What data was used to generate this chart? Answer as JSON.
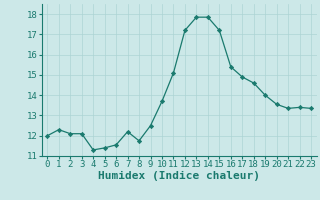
{
  "x": [
    0,
    1,
    2,
    3,
    4,
    5,
    6,
    7,
    8,
    9,
    10,
    11,
    12,
    13,
    14,
    15,
    16,
    17,
    18,
    19,
    20,
    21,
    22,
    23
  ],
  "y": [
    12.0,
    12.3,
    12.1,
    12.1,
    11.3,
    11.4,
    11.55,
    12.2,
    11.75,
    12.5,
    13.7,
    15.1,
    17.2,
    17.85,
    17.85,
    17.2,
    15.4,
    14.9,
    14.6,
    14.0,
    13.55,
    13.35,
    13.4,
    13.35
  ],
  "xlabel": "Humidex (Indice chaleur)",
  "ylim": [
    11,
    18.5
  ],
  "xlim": [
    -0.5,
    23.5
  ],
  "yticks": [
    11,
    12,
    13,
    14,
    15,
    16,
    17,
    18
  ],
  "xticks": [
    0,
    1,
    2,
    3,
    4,
    5,
    6,
    7,
    8,
    9,
    10,
    11,
    12,
    13,
    14,
    15,
    16,
    17,
    18,
    19,
    20,
    21,
    22,
    23
  ],
  "line_color": "#1a7a6e",
  "marker_color": "#1a7a6e",
  "bg_color": "#cce8e8",
  "grid_color": "#add4d4",
  "xlabel_fontsize": 8,
  "tick_fontsize": 6.5
}
